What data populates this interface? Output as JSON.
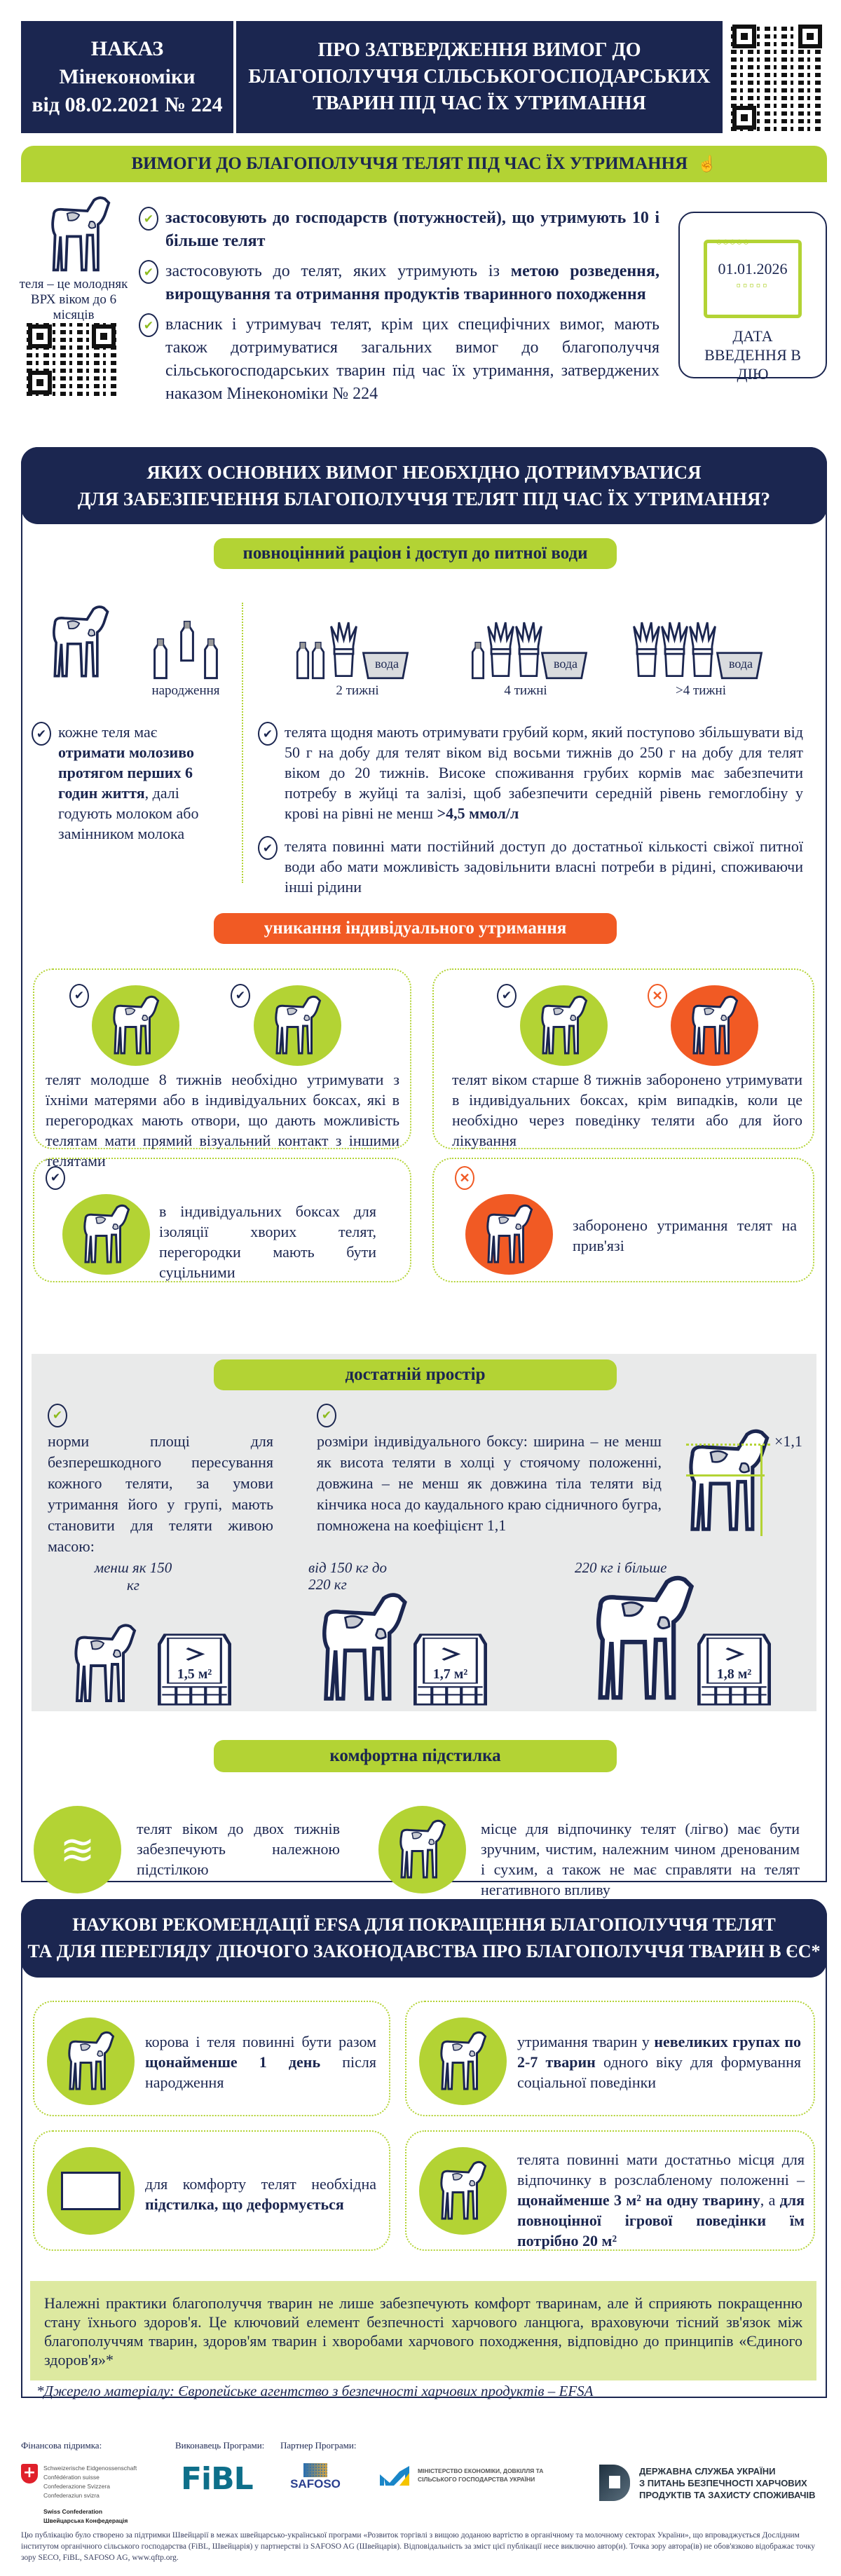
{
  "colors": {
    "navy": "#1b2650",
    "green": "#b3d334",
    "orange": "#f15a24",
    "grey_panel": "#e9eaea",
    "light_green": "#dde9a0"
  },
  "header": {
    "order_lines": [
      "НАКАЗ",
      "Мінекономіки",
      "від 08.02.2021 № 224"
    ],
    "title_lines": [
      "ПРО ЗАТВЕРДЖЕННЯ ВИМОГ ДО",
      "БЛАГОПОЛУЧЧЯ СІЛЬСЬКОГОСПОДАРСЬКИХ",
      "ТВАРИН ПІД ЧАС ЇХ УТРИМАННЯ"
    ]
  },
  "requirements": {
    "bar_title": "ВИМОГИ ДО БЛАГОПОЛУЧЧЯ ТЕЛЯТ ПІД ЧАС ЇХ УТРИМАННЯ",
    "calf_caption": "теля – це молодняк ВРХ віком до 6 місяців",
    "bullets": [
      {
        "bold": "застосовують до господарств (потужностей), що утримують 10 і більше телят"
      },
      {
        "plain": "застосовують до телят, яких утримують із ",
        "bold": "метою розведення, вирощування та отримання продуктів тваринного походження"
      },
      {
        "plain": "власник і утримувач телят, крім цих специфічних вимог, мають також дотримуватися загальних вимог до благополуччя сільськогосподарських тварин під час їх утримання, затверджених наказом Мінекономіки № 224"
      }
    ],
    "date": "01.01.2026",
    "date_label": "ДАТА ВВЕДЕННЯ В ДІЮ"
  },
  "main": {
    "title_lines": [
      "ЯКИХ ОСНОВНИХ ВИМОГ НЕОБХІДНО ДОТРИМУВАТИСЯ",
      "ДЛЯ ЗАБЕЗПЕЧЕННЯ БЛАГОПОЛУЧЧЯ ТЕЛЯТ ПІД ЧАС ЇХ УТРИМАННЯ?"
    ],
    "nutrition": {
      "title": "повноцінний раціон і доступ до питної води",
      "stages": [
        "народження",
        "2 тижні",
        "4 тижні",
        ">4 тижні"
      ],
      "water_label": "вода",
      "left_bullet": {
        "plain1": "кожне теля має ",
        "bold": "отримати молозиво протягом перших 6 годин життя",
        "plain2": ", далі годують молоком або замінником молока"
      },
      "right_bullets": [
        {
          "plain": "телята щодня мають отримувати грубий корм, який поступово збільшувати від 50 г на добу для телят віком від восьми тижнів до 250 г на добу для телят віком до 20 тижнів. Високе споживання грубих кормів має забезпечити потребу в жуйці та залізі, щоб забезпечити середній рівень гемоглобіну у крові на рівні не менш ",
          "bold": ">4,5 ммол/л"
        },
        {
          "plain": "телята повинні мати постійний доступ до достатньої кількості свіжої питної води або мати можливість задовільнити власні потреби в рідині, споживаючи інші рідини"
        }
      ]
    },
    "individual": {
      "title": "уникання індивідуального утримання",
      "cards": [
        {
          "text": "телят молодше 8 тижнів необхідно утримувати з їхніми матерями або в індивідуальних боксах, які в перегородках мають отвори, що дають можливість телятам мати прямий візуальний контакт з іншими телятами"
        },
        {
          "text": "телят віком старше 8 тижнів заборонено утримувати в індивідуальних боксах, крім випадків, коли це необхідно через поведінку теляти або для його лікування"
        },
        {
          "text": "в індивідуальних боксах для ізоляції хворих телят, перегородки мають бути суцільними"
        },
        {
          "text": "заборонено утримання телят на прив'язі"
        }
      ]
    },
    "space": {
      "title": "достатній простір",
      "left_text": "норми площі для безперешкодного пересування кожного теляти, за умови утримання його у групі, мають становити для теляти живою масою:",
      "right_text": "розміри індивідуального боксу: ширина – не менш як висота теляти в холці у стоячому положенні, довжина – не менш як довжина тіла теляти від кінчика носа до каудального краю сідничного бугра, помножена на коефіцієнт 1,1",
      "multiplier": "×1,1",
      "norms": [
        {
          "weight": "менш як 150 кг",
          "area": "1,5 м²"
        },
        {
          "weight": "від 150 кг до 220 кг",
          "area": "1,7 м²"
        },
        {
          "weight": "220 кг і більше",
          "area": "1,8 м²"
        }
      ]
    },
    "bedding": {
      "title": "комфортна підстилка",
      "items": [
        "телят віком до двох тижнів забезпечують належною підстілкою",
        "місце для відпочинку телят (лігво) має бути зручним, чистим, належним чином дренованим і сухим, а також не має справляти на телят негативного впливу"
      ]
    }
  },
  "efsa": {
    "title_lines": [
      "НАУКОВІ РЕКОМЕНДАЦІЇ EFSA ДЛЯ ПОКРАЩЕННЯ БЛАГОПОЛУЧЧЯ ТЕЛЯТ",
      "ТА ДЛЯ ПЕРЕГЛЯДУ ДІЮЧОГО ЗАКОНОДАВСТВА ПРО БЛАГОПОЛУЧЧЯ ТВАРИН В ЄС*"
    ],
    "cards": [
      {
        "p1": "корова і теля повинні бути разом ",
        "b1": "щонайменше 1 день",
        "p2": " після народження"
      },
      {
        "p1": "утримання тварин у ",
        "b1": "невеликих групах по 2-7 тварин",
        "p2": " одного віку для формування соціальної поведінки"
      },
      {
        "p1": "для комфорту телят необхідна ",
        "b1": "підстилка, що деформується",
        "p2": ""
      },
      {
        "p1": "телята повинні мати достатньо місця для відпочинку в розслабленому положенні – ",
        "b1": "щонайменше 3 м² на одну тварину",
        "p2": ", а ",
        "b2": "для повноцінної ігрової поведінки їм потрібно 20 м²"
      }
    ],
    "note": "Належні практики благополуччя тварин не лише забезпечують комфорт тваринам, але й сприяють покращенню стану їхнього здоров'я. Це ключовий елемент безпечності харчового ланцюга, враховуючи тісний зв'язок між благополуччям тварин, здоров'ям тварин і хворобами харчового походження, відповідно до принципів «Єдиного здоров'я»*",
    "source": "*Джерело матеріалу: Європейське агентство з безпечності харчових продуктів – EFSA"
  },
  "footer": {
    "funding_label": "Фінансова підримка:",
    "implementer_label": "Виконавець Програми:",
    "partner_label": "Партнер Програми:",
    "swiss_lines": [
      "Schweizerische Eidgenossenschaft",
      "Confédération suisse",
      "Confederazione Svizzera",
      "Confederaziun svizra"
    ],
    "swiss_bold": [
      "Swiss Confederation",
      "Швейцарська Конфедерація"
    ],
    "fibl": "FiBL",
    "safoso": "SAFOSO",
    "ministry": "МІНІСТЕРСТВО ЕКОНОМІКИ, ДОВКІЛЛЯ ТА СІЛЬСЬКОГО ГОСПОДАРСТВА УКРАЇНИ",
    "dpss": [
      "ДЕРЖАВНА СЛУЖБА УКРАЇНИ",
      "З ПИТАНЬ БЕЗПЕЧНОСТІ ХАРЧОВИХ",
      "ПРОДУКТІВ ТА ЗАХИСТУ СПОЖИВАЧІВ"
    ],
    "disclaimer": "Цю публікацію було створено за підтримки Швейцарії в межах швейцарсько-української програми «Розвиток торгівлі з вищою доданою вартістю в органічному та молочному секторах України», що впроваджується Дослідним інститутом органічного сільського господарства (FiBL, Швейцарія) у партнерстві із SAFOSO AG (Швейцарія). Відповідальність за зміст цієї публікації несе виключно автор(и). Точка зору автора(ів) не обов'язково відображає точку зору SECO, FiBL, SAFOSO AG, www.qftp.org."
  }
}
